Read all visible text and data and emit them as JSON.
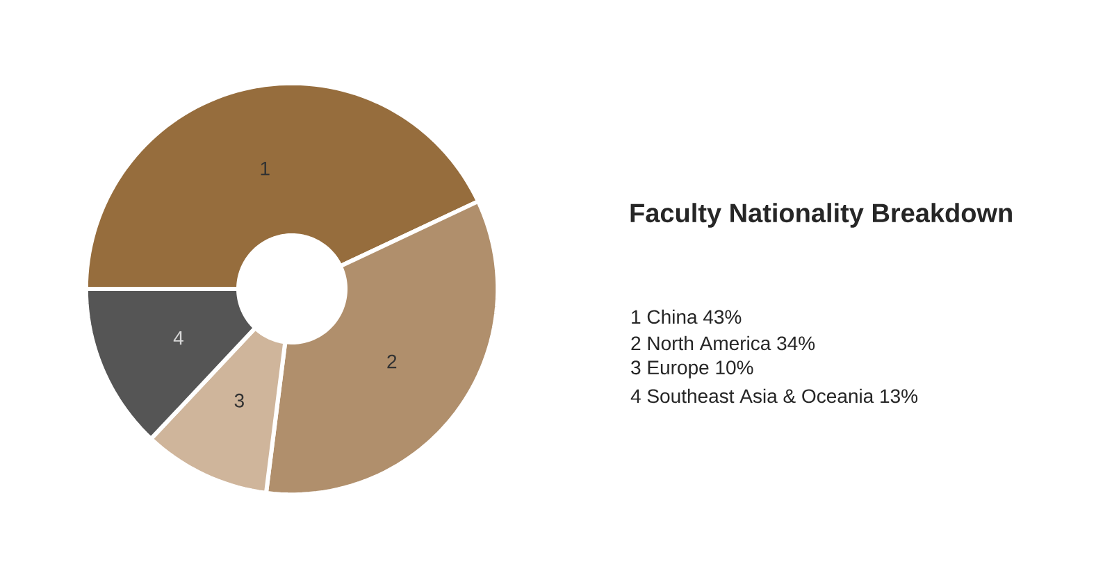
{
  "chart_data": {
    "type": "donut",
    "title": "Faculty Nationality Breakdown",
    "categories": [
      "1",
      "2",
      "3",
      "4"
    ],
    "values": [
      43,
      34,
      10,
      13
    ],
    "colors": [
      "#966d3d",
      "#b08f6c",
      "#cfb59b",
      "#555555"
    ],
    "annotations": [
      "1 China 43%",
      "2 North America 34%",
      "3 Europe 10%",
      "4 Southeast Asia & Oceania 13%"
    ]
  }
}
